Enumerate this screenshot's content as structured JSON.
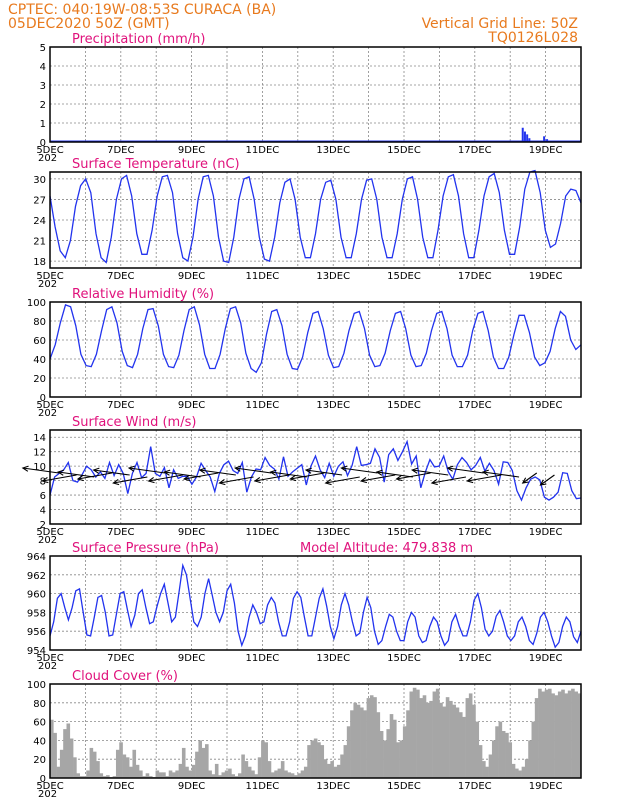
{
  "header": {
    "line1": "CPTEC:   040:19W-08:53S   CURACA (BA)",
    "line2": "05DEC2020 50Z (GMT)",
    "grid_note": "Vertical Grid Line: 50Z",
    "code": "TQ0126L028"
  },
  "colors": {
    "header": "#e87a1e",
    "title": "#e0127c",
    "line": "#2233ee",
    "cloud": "#a6a6a6",
    "arrow": "#000000"
  },
  "x_ticks": [
    "5DEC",
    "7DEC",
    "9DEC",
    "11DEC",
    "13DEC",
    "15DEC",
    "17DEC",
    "19DEC"
  ],
  "year_fragment": "202",
  "chart_data": [
    {
      "id": "precip",
      "type": "bar",
      "title": "Precipitation (mm/h)",
      "ylim": [
        0,
        5
      ],
      "yticks": [
        "0",
        "1",
        "2",
        "3",
        "4",
        "5"
      ],
      "grid": true,
      "x_unit": "hours since 05DEC 00Z",
      "x_range": [
        0,
        360
      ],
      "points": [
        [
          320.5,
          0.75
        ],
        [
          322,
          0.55
        ],
        [
          323.5,
          0.4
        ],
        [
          325,
          0.2
        ],
        [
          335,
          0.3
        ],
        [
          337,
          0.15
        ]
      ]
    },
    {
      "id": "temp",
      "type": "line",
      "title": "Surface Temperature (nC)",
      "ylim": [
        17,
        31
      ],
      "yticks": [
        "18",
        "21",
        "24",
        "27",
        "30"
      ],
      "grid": true,
      "x_unit": "hours since 05DEC 00Z",
      "x_range": [
        0,
        360
      ],
      "series": [
        {
          "values": [
            27.5,
            23.0,
            19.5,
            18.5,
            21.0,
            26.0,
            29.0,
            30.0,
            28.0,
            22.0,
            18.5,
            17.8,
            21.5,
            27.0,
            30.0,
            30.5,
            27.5,
            22.0,
            19.0,
            19.0,
            22.5,
            27.5,
            30.3,
            30.5,
            28.0,
            22.0,
            18.5,
            18.0,
            21.5,
            27.0,
            30.3,
            30.5,
            27.5,
            21.5,
            18.0,
            17.8,
            21.5,
            27.0,
            30.0,
            30.3,
            27.0,
            21.5,
            18.3,
            18.0,
            21.5,
            26.5,
            29.5,
            30.0,
            27.0,
            21.5,
            18.5,
            18.5,
            22.0,
            27.0,
            29.5,
            29.8,
            27.0,
            21.5,
            18.5,
            18.5,
            22.0,
            27.0,
            29.8,
            30.0,
            27.0,
            21.5,
            18.5,
            18.5,
            22.0,
            27.0,
            30.0,
            30.3,
            27.0,
            21.5,
            18.5,
            18.5,
            22.5,
            27.5,
            30.3,
            30.6,
            27.5,
            22.0,
            18.5,
            18.5,
            22.5,
            27.5,
            30.3,
            30.8,
            28.0,
            22.5,
            19.0,
            19.0,
            23.0,
            28.5,
            31.0,
            31.2,
            28.0,
            22.5,
            20.0,
            20.5,
            23.5,
            27.5,
            28.5,
            28.3,
            26.5
          ]
        }
      ]
    },
    {
      "id": "rh",
      "type": "line",
      "title": "Relative Humidity (%)",
      "ylim": [
        0,
        100
      ],
      "yticks": [
        "0",
        "20",
        "40",
        "60",
        "80",
        "100"
      ],
      "grid": true,
      "x_unit": "hours since 05DEC 00Z",
      "x_range": [
        0,
        360
      ],
      "series": [
        {
          "values": [
            40,
            55,
            78,
            97,
            95,
            75,
            45,
            33,
            32,
            45,
            70,
            92,
            95,
            78,
            48,
            33,
            31,
            45,
            72,
            92,
            93,
            75,
            45,
            32,
            31,
            44,
            70,
            92,
            95,
            76,
            45,
            30,
            30,
            45,
            72,
            93,
            95,
            78,
            46,
            30,
            26,
            36,
            66,
            90,
            92,
            75,
            45,
            30,
            29,
            42,
            68,
            88,
            90,
            72,
            44,
            31,
            32,
            46,
            70,
            88,
            90,
            72,
            44,
            32,
            33,
            46,
            70,
            88,
            90,
            72,
            44,
            32,
            33,
            46,
            70,
            88,
            90,
            72,
            44,
            32,
            32,
            44,
            70,
            88,
            90,
            70,
            42,
            30,
            30,
            42,
            66,
            86,
            86,
            68,
            42,
            33,
            36,
            48,
            72,
            90,
            85,
            60,
            50,
            55
          ]
        }
      ]
    },
    {
      "id": "wind",
      "type": "line",
      "title": "Surface Wind (m/s)",
      "ylim": [
        2,
        15
      ],
      "yticks": [
        "2",
        "4",
        "6",
        "8",
        "10",
        "12",
        "14"
      ],
      "grid": true,
      "x_unit": "hours since 05DEC 00Z",
      "x_range": [
        0,
        360
      ],
      "series": [
        {
          "values": [
            6.0,
            8.5,
            9.0,
            9.5,
            10.5,
            8.0,
            7.8,
            8.8,
            10.0,
            9.5,
            8.5,
            9.2,
            8.3,
            10.5,
            8.7,
            10.2,
            9.0,
            6.2,
            9.0,
            10.5,
            8.4,
            9.0,
            12.7,
            9.0,
            8.6,
            9.8,
            7.0,
            9.5,
            8.3,
            8.6,
            8.6,
            7.5,
            8.5,
            10.4,
            9.4,
            8.5,
            6.5,
            9.0,
            10.2,
            10.7,
            9.4,
            9.0,
            10.5,
            6.4,
            8.5,
            9.6,
            9.5,
            11.2,
            10.1,
            9.6,
            8.2,
            11.3,
            8.6,
            9.2,
            9.7,
            10.2,
            7.4,
            10.0,
            11.4,
            9.5,
            8.4,
            10.4,
            8.6,
            10.0,
            10.6,
            8.7,
            10.1,
            12.7,
            10.1,
            10.2,
            10.4,
            12.4,
            11.2,
            7.8,
            11.6,
            12.4,
            10.8,
            12.0,
            13.4,
            10.3,
            11.4,
            7.0,
            9.2,
            10.9,
            9.9,
            10.0,
            11.4,
            9.2,
            8.2,
            10.2,
            11.2,
            10.5,
            9.5,
            10.1,
            11.2,
            9.3,
            10.4,
            9.4,
            7.5,
            10.6,
            10.5,
            9.4,
            6.6,
            5.3,
            7.0,
            8.2,
            8.5,
            8.1,
            5.7,
            5.3,
            5.7,
            6.4,
            9.1,
            9.0,
            6.6,
            5.5,
            5.6
          ]
        }
      ]
    },
    {
      "id": "pressure",
      "type": "line",
      "title": "Surface Pressure (hPa)",
      "annotation": "Model Altitude: 479.838  m",
      "ylim": [
        954,
        964
      ],
      "yticks": [
        "954",
        "956",
        "958",
        "960",
        "962",
        "964"
      ],
      "grid": true,
      "x_unit": "hours since 05DEC 00Z",
      "x_range": [
        0,
        360
      ],
      "series": [
        {
          "values": [
            955.5,
            957.0,
            959.5,
            960.0,
            958.5,
            957.2,
            958.5,
            960.3,
            960.5,
            958.0,
            955.6,
            955.5,
            957.5,
            959.6,
            959.8,
            958.0,
            955.5,
            955.6,
            957.8,
            960.0,
            960.2,
            958.3,
            956.5,
            957.7,
            960.0,
            960.4,
            958.5,
            956.8,
            957.0,
            958.6,
            960.0,
            961.0,
            959.0,
            957.0,
            957.5,
            960.2,
            963.0,
            962.0,
            959.5,
            957.0,
            956.5,
            957.5,
            960.0,
            961.6,
            959.8,
            958.0,
            957.0,
            958.0,
            960.3,
            961.0,
            959.0,
            956.0,
            954.5,
            955.5,
            957.5,
            958.8,
            958.0,
            956.8,
            957.0,
            958.8,
            959.6,
            959.0,
            957.0,
            955.5,
            955.5,
            957.0,
            959.5,
            960.2,
            959.6,
            957.5,
            955.5,
            955.5,
            957.5,
            959.5,
            960.5,
            958.7,
            956.5,
            955.2,
            956.5,
            958.8,
            960.0,
            958.8,
            957.0,
            955.5,
            955.8,
            958.0,
            959.6,
            958.5,
            956.0,
            954.6,
            955.0,
            956.5,
            957.8,
            957.5,
            956.0,
            955.0,
            955.0,
            957.0,
            958.0,
            957.5,
            955.5,
            954.8,
            955.0,
            956.5,
            957.5,
            957.0,
            955.5,
            954.5,
            955.0,
            957.0,
            957.8,
            956.5,
            955.5,
            955.5,
            957.0,
            959.3,
            960.0,
            958.5,
            956.2,
            955.5,
            956.0,
            957.6,
            958.2,
            957.0,
            955.5,
            955.0,
            955.5,
            957.0,
            957.5,
            956.5,
            955.0,
            954.6,
            955.8,
            957.5,
            958.0,
            957.0,
            955.5,
            954.3,
            954.8,
            956.5,
            957.5,
            957.0,
            955.4,
            954.8,
            956.0
          ]
        }
      ]
    },
    {
      "id": "cloud",
      "type": "area",
      "title": "Cloud Cover (%)",
      "ylim": [
        0,
        100
      ],
      "yticks": [
        "0",
        "20",
        "40",
        "60",
        "80",
        "100"
      ],
      "grid": true,
      "x_unit": "hours since 05DEC 00Z",
      "x_range": [
        0,
        360
      ],
      "series": [
        {
          "values": [
            62,
            48,
            12,
            30,
            52,
            58,
            42,
            22,
            5,
            2,
            2,
            8,
            32,
            28,
            18,
            5,
            2,
            3,
            1,
            2,
            30,
            38,
            25,
            22,
            12,
            30,
            14,
            8,
            2,
            5,
            2,
            1,
            8,
            6,
            6,
            2,
            8,
            6,
            8,
            15,
            32,
            12,
            8,
            14,
            28,
            40,
            32,
            36,
            8,
            4,
            15,
            3,
            6,
            8,
            10,
            4,
            2,
            5,
            25,
            18,
            12,
            8,
            4,
            22,
            40,
            38,
            18,
            6,
            8,
            10,
            18,
            8,
            6,
            5,
            3,
            5,
            8,
            12,
            35,
            40,
            42,
            38,
            35,
            20,
            15,
            18,
            12,
            14,
            25,
            35,
            55,
            72,
            80,
            78,
            75,
            72,
            85,
            88,
            86,
            70,
            50,
            40,
            52,
            68,
            62,
            38,
            40,
            55,
            72,
            92,
            96,
            94,
            85,
            88,
            80,
            82,
            92,
            95,
            80,
            76,
            86,
            82,
            78,
            75,
            70,
            65,
            85,
            90,
            78,
            60,
            35,
            18,
            12,
            25,
            40,
            55,
            60,
            50,
            48,
            38,
            15,
            10,
            8,
            12,
            20,
            40,
            60,
            85,
            95,
            92,
            94,
            95,
            90,
            88,
            92,
            94,
            90,
            93,
            95,
            92,
            90
          ]
        }
      ]
    }
  ]
}
